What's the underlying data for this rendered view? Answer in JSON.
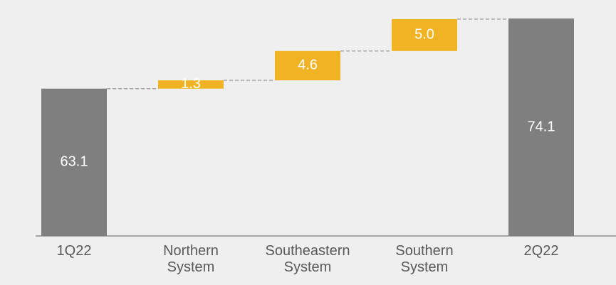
{
  "chart_data": {
    "type": "waterfall",
    "categories": [
      "1Q22",
      "Northern System",
      "Southeastern System",
      "Southern System",
      "2Q22"
    ],
    "values": [
      63.1,
      1.3,
      4.6,
      5,
      74.1
    ],
    "value_labels": [
      "63.1",
      "1.3",
      "4.6",
      "5.0",
      "74.1"
    ],
    "is_total": [
      true,
      false,
      false,
      false,
      true
    ],
    "total_color": "#7f7f7f",
    "increase_color": "#f0b323",
    "ylim": [
      40,
      77
    ]
  }
}
